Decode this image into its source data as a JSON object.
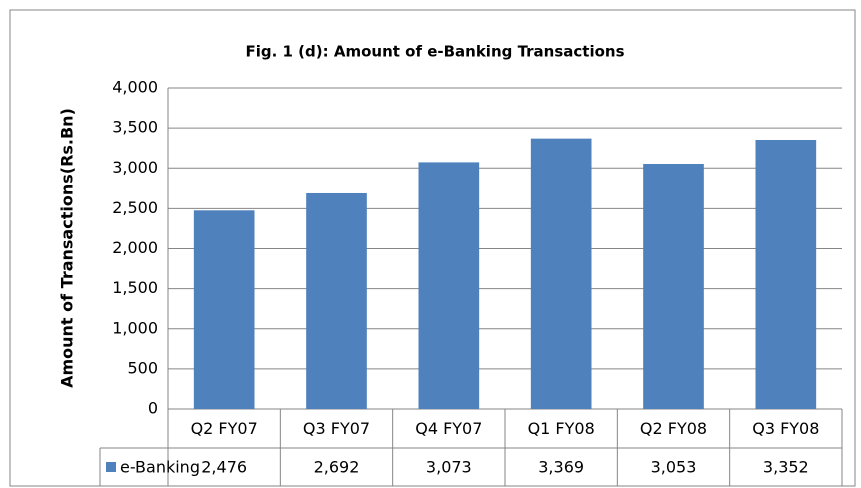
{
  "chart_data": {
    "type": "bar",
    "title": "Fig. 1 (d): Amount of e-Banking Transactions",
    "y_label": "Amount of Transactions(Rs.Bn)",
    "categories": [
      "Q2 FY07",
      "Q3 FY07",
      "Q4 FY07",
      "Q1 FY08",
      "Q2 FY08",
      "Q3 FY08"
    ],
    "series": [
      {
        "name": "e-Banking",
        "color": "#4f81bd",
        "values": [
          2476,
          2692,
          3073,
          3369,
          3053,
          3352
        ],
        "value_labels": [
          "2,476",
          "2,692",
          "3,073",
          "3,369",
          "3,053",
          "3,352"
        ]
      }
    ],
    "ylim": [
      0,
      4000
    ],
    "yticks": [
      0,
      500,
      {
        "value": 1000,
        "label": "1,000"
      },
      {
        "value": 1500,
        "label": "1,500"
      },
      {
        "value": 2000,
        "label": "2,000"
      },
      {
        "value": 2500,
        "label": "2,500"
      },
      {
        "value": 3000,
        "label": "3,000"
      },
      {
        "value": 3500,
        "label": "3,500"
      },
      {
        "value": 4000,
        "label": "4,000"
      }
    ],
    "grid": true
  }
}
